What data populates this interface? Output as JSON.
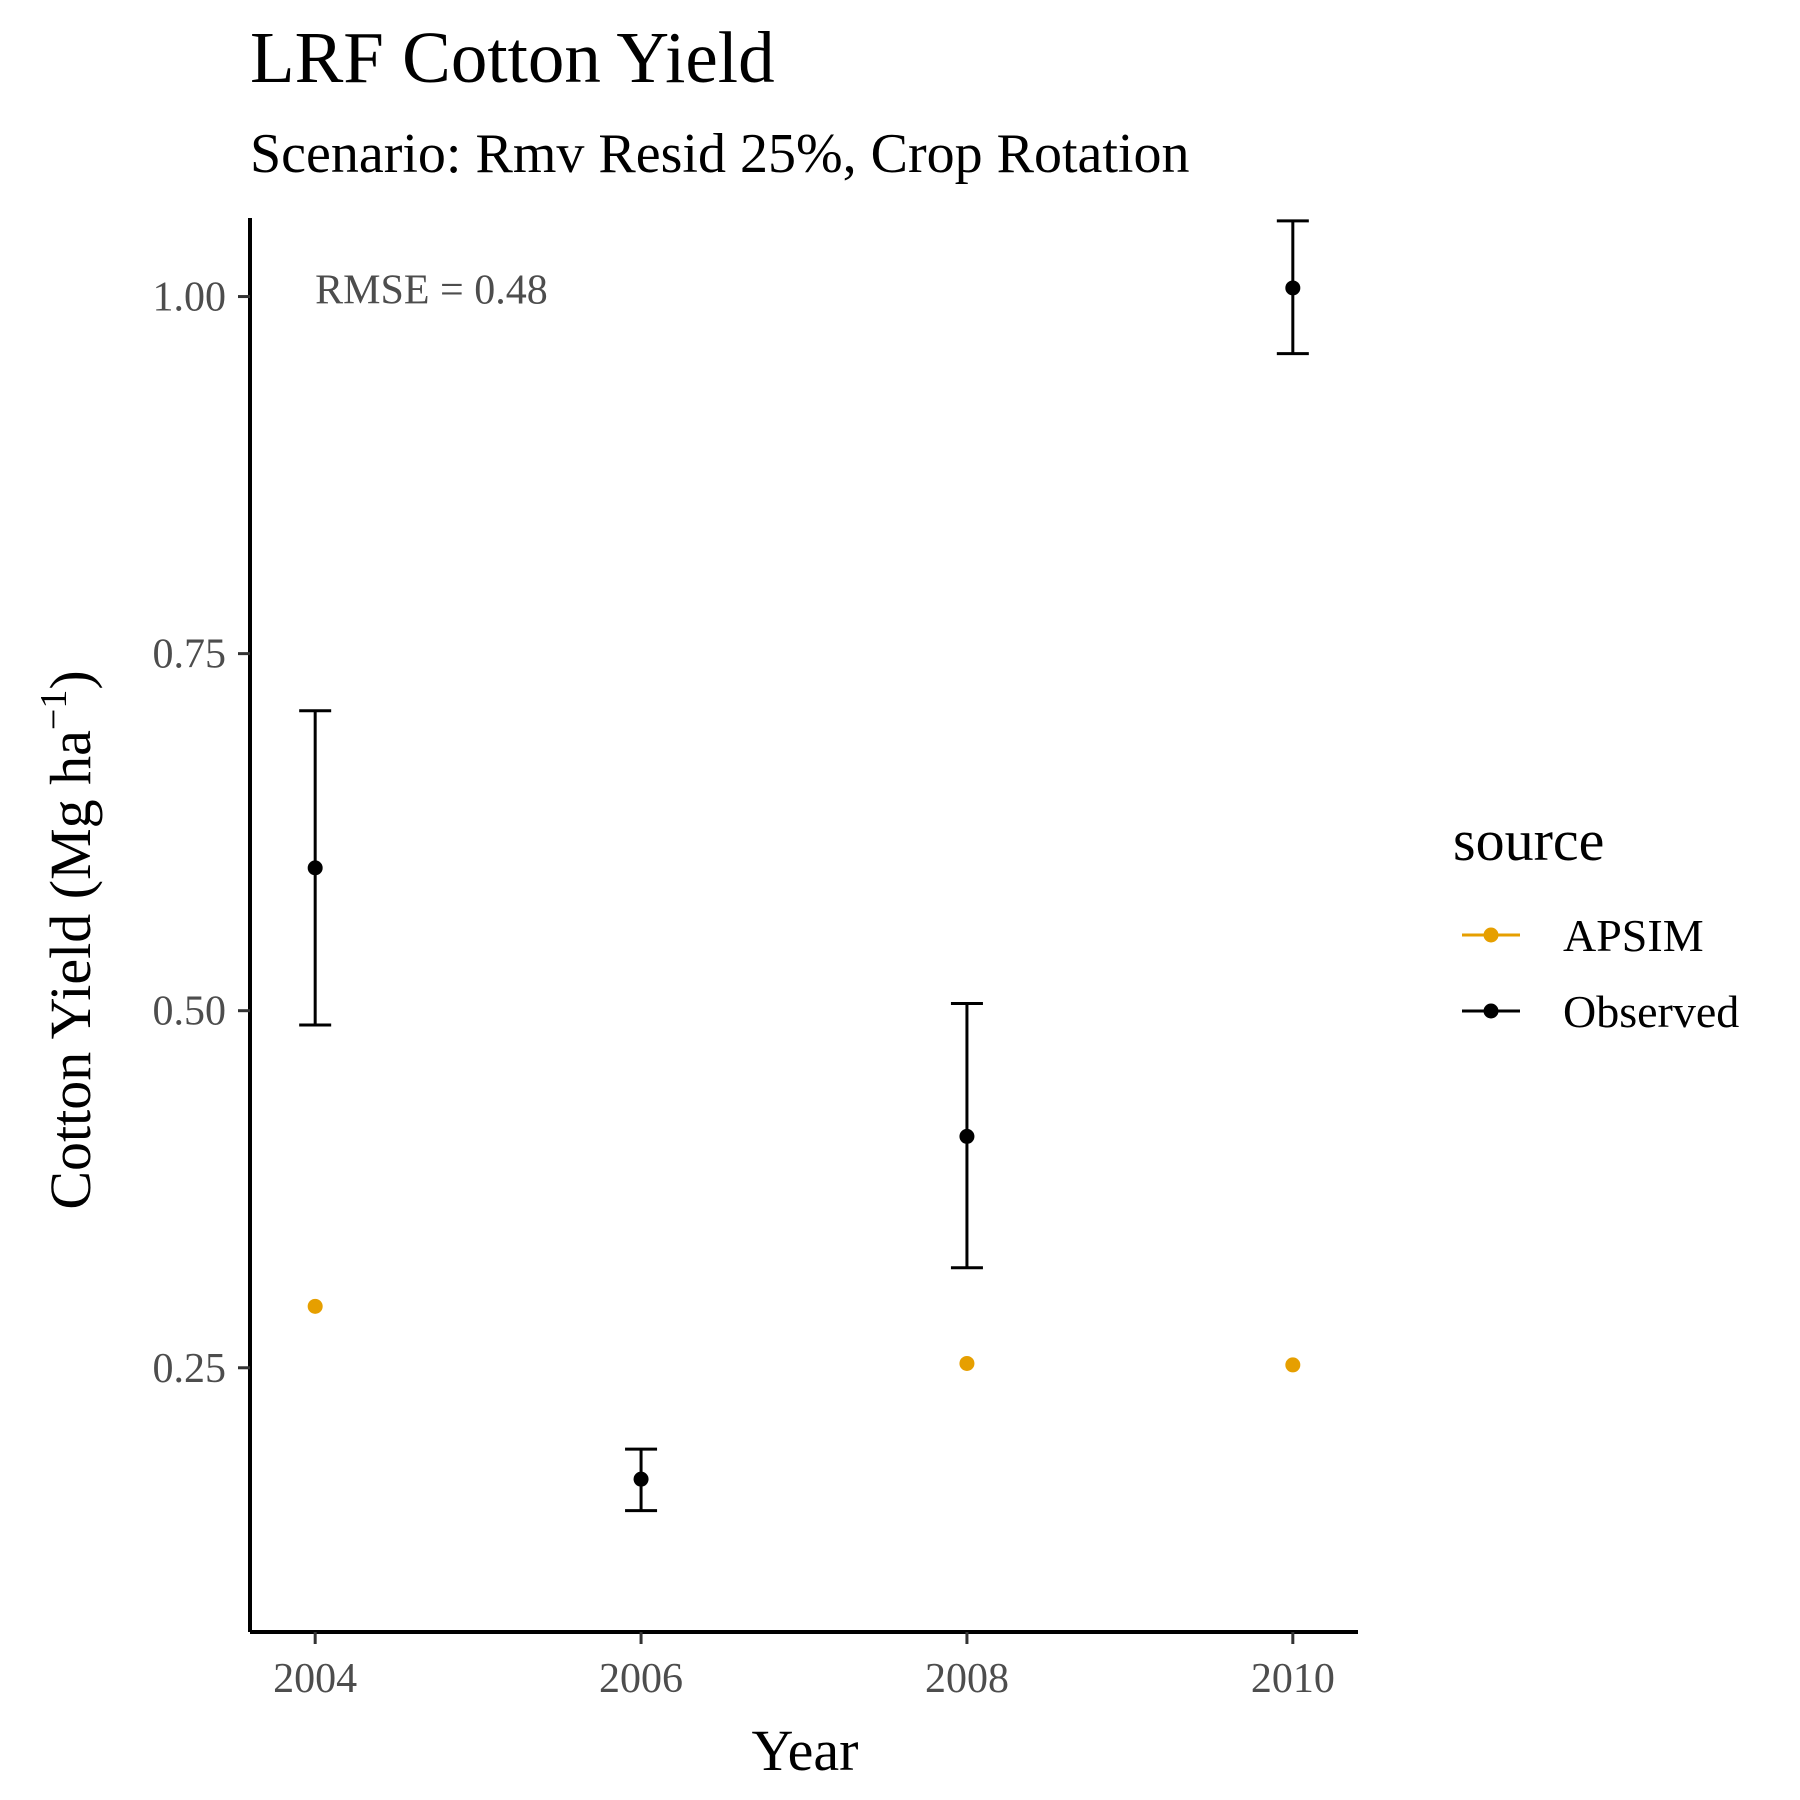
{
  "chart_data": {
    "type": "scatter",
    "title": "LRF Cotton Yield",
    "subtitle": "Scenario: Rmv Resid 25%, Crop Rotation",
    "xlabel": "Year",
    "ylabel_main": "Cotton Yield (Mg ha",
    "ylabel_sup": "−1",
    "ylabel_close": ")",
    "xlim": [
      2003.6,
      2010.4
    ],
    "ylim": [
      0.065,
      1.055
    ],
    "x_ticks": [
      2004,
      2006,
      2008,
      2010
    ],
    "x_tick_labels": [
      "2004",
      "2006",
      "2008",
      "2010"
    ],
    "y_ticks": [
      0.25,
      0.5,
      0.75,
      1.0
    ],
    "y_tick_labels": [
      "0.25",
      "0.50",
      "0.75",
      "1.00"
    ],
    "grid": false,
    "legend": {
      "title": "source",
      "position": "right",
      "entries": [
        "APSIM",
        "Observed"
      ]
    },
    "annotation": {
      "text": "RMSE = 0.48",
      "x": 2004.0,
      "y": 1.005
    },
    "series": [
      {
        "name": "APSIM",
        "color": "#E69F00",
        "x": [
          2004,
          2008,
          2010
        ],
        "y": [
          0.293,
          0.253,
          0.252
        ]
      },
      {
        "name": "Observed",
        "color": "#000000",
        "x": [
          2004,
          2006,
          2008,
          2010
        ],
        "y": [
          0.6,
          0.172,
          0.412,
          1.006
        ],
        "ymin": [
          0.49,
          0.15,
          0.32,
          0.96
        ],
        "ymax": [
          0.71,
          0.193,
          0.505,
          1.053
        ]
      }
    ]
  }
}
